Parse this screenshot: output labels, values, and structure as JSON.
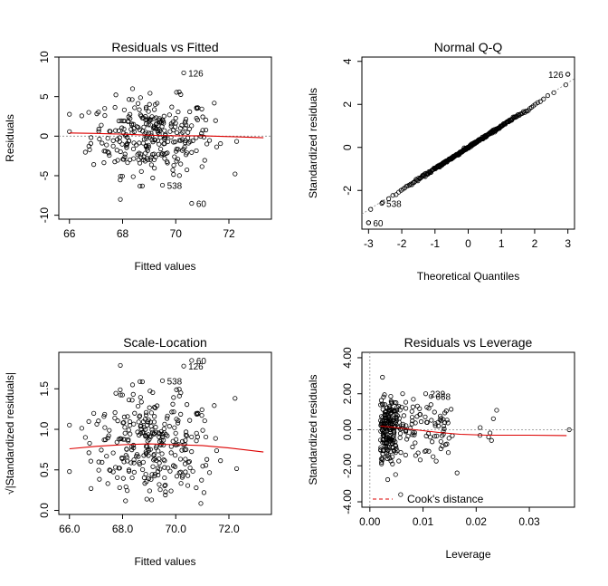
{
  "chart_data": [
    {
      "type": "scatter",
      "title": "Residuals vs Fitted",
      "xlabel": "Fitted values",
      "ylabel": "Residuals",
      "xlim": [
        65.6,
        73.6
      ],
      "ylim": [
        -10.5,
        10
      ],
      "xticks": [
        66,
        68,
        70,
        72
      ],
      "yticks": [
        -10,
        -5,
        0,
        5,
        10
      ],
      "reference_line": {
        "type": "horizontal",
        "y": 0,
        "style": "dotted-gray"
      },
      "smooth_line": [
        [
          66.0,
          0.4
        ],
        [
          67.0,
          0.35
        ],
        [
          68.0,
          0.25
        ],
        [
          69.0,
          0.12
        ],
        [
          70.0,
          0.05
        ],
        [
          71.0,
          0.05
        ],
        [
          72.0,
          -0.05
        ],
        [
          73.3,
          -0.2
        ]
      ],
      "labeled_points": [
        {
          "label": "126",
          "x": 70.3,
          "y": 8.0
        },
        {
          "label": "538",
          "x": 69.5,
          "y": -6.2
        },
        {
          "label": "60",
          "x": 70.6,
          "y": -8.5
        }
      ]
    },
    {
      "type": "scatter",
      "title": "Normal Q-Q",
      "xlabel": "Theoretical Quantiles",
      "ylabel": "Standardized residuals",
      "xlim": [
        -3.2,
        3.2
      ],
      "ylim": [
        -3.8,
        4.2
      ],
      "xticks": [
        -3,
        -2,
        -1,
        0,
        1,
        2,
        3
      ],
      "yticks": [
        -2,
        0,
        2,
        4
      ],
      "reference_line": {
        "type": "diagonal",
        "x": [
          -3.2,
          3.2
        ],
        "y": [
          -3.1,
          3.2
        ],
        "style": "dotted-gray"
      },
      "labeled_points": [
        {
          "label": "126",
          "x": 3.0,
          "y": 3.4
        },
        {
          "label": "60",
          "x": -3.0,
          "y": -3.5
        },
        {
          "label": "538",
          "x": -2.6,
          "y": -2.6
        }
      ]
    },
    {
      "type": "scatter",
      "title": "Scale-Location",
      "xlabel": "Fitted values",
      "ylabel": "√|Standardized residuals|",
      "xlim": [
        65.6,
        73.6
      ],
      "ylim": [
        -0.05,
        1.95
      ],
      "xticks": [
        66,
        68,
        70,
        72
      ],
      "yticks": [
        0.0,
        0.5,
        1.0,
        1.5
      ],
      "smooth_line": [
        [
          66.0,
          0.76
        ],
        [
          67.0,
          0.79
        ],
        [
          68.0,
          0.81
        ],
        [
          69.0,
          0.82
        ],
        [
          70.0,
          0.81
        ],
        [
          71.0,
          0.8
        ],
        [
          72.0,
          0.77
        ],
        [
          73.3,
          0.72
        ]
      ],
      "labeled_points": [
        {
          "label": "60",
          "x": 70.6,
          "y": 1.85
        },
        {
          "label": "126",
          "x": 70.3,
          "y": 1.78
        },
        {
          "label": "538",
          "x": 69.5,
          "y": 1.6
        }
      ]
    },
    {
      "type": "scatter",
      "title": "Residuals vs Leverage",
      "xlabel": "Leverage",
      "ylabel": "Standardized residuals",
      "xlim": [
        -0.0015,
        0.0385
      ],
      "ylim": [
        -4.3,
        4.3
      ],
      "xticks": [
        0.0,
        0.01,
        0.02,
        0.03
      ],
      "yticks": [
        -4,
        -2,
        0,
        2,
        4
      ],
      "smooth_line": [
        [
          0.002,
          0.2
        ],
        [
          0.004,
          0.15
        ],
        [
          0.007,
          0.05
        ],
        [
          0.01,
          -0.05
        ],
        [
          0.013,
          -0.15
        ],
        [
          0.017,
          -0.25
        ],
        [
          0.022,
          -0.3
        ],
        [
          0.03,
          -0.3
        ],
        [
          0.037,
          -0.32
        ]
      ],
      "reference_lines": [
        {
          "type": "horizontal",
          "y": 0,
          "style": "dotted-gray"
        },
        {
          "type": "vertical",
          "x": 0,
          "style": "dotted-gray"
        }
      ],
      "legend": {
        "label": "Cook's distance",
        "placement": "bottom-left",
        "style": "dashed-red"
      },
      "labeled_points": [
        {
          "label": "239",
          "x": 0.0105,
          "y": 2.0
        },
        {
          "label": "668",
          "x": 0.0115,
          "y": 1.85
        }
      ]
    }
  ]
}
